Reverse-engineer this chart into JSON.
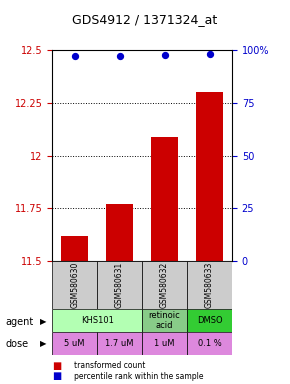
{
  "title": "GDS4912 / 1371324_at",
  "samples": [
    "GSM580630",
    "GSM580631",
    "GSM580632",
    "GSM580633"
  ],
  "bar_values": [
    11.62,
    11.77,
    12.09,
    12.3
  ],
  "percentile_values": [
    97,
    97,
    97.5,
    98
  ],
  "ylim_left": [
    11.5,
    12.5
  ],
  "ylim_right": [
    0,
    100
  ],
  "yticks_left": [
    11.5,
    11.75,
    12.0,
    12.25,
    12.5
  ],
  "ytick_labels_left": [
    "11.5",
    "11.75",
    "12",
    "12.25",
    "12.5"
  ],
  "yticks_right": [
    0,
    25,
    50,
    75,
    100
  ],
  "ytick_labels_right": [
    "0",
    "25",
    "50",
    "75",
    "100%"
  ],
  "bar_color": "#cc0000",
  "dot_color": "#0000cc",
  "bar_bottom": 11.5,
  "agent_configs": [
    [
      0,
      2,
      "KHS101",
      "#b3ffb3"
    ],
    [
      2,
      3,
      "retinoic\nacid",
      "#88cc88"
    ],
    [
      3,
      4,
      "DMSO",
      "#33cc33"
    ]
  ],
  "dose_labels": [
    "5 uM",
    "1.7 uM",
    "1 uM",
    "0.1 %"
  ],
  "dose_color": "#dd88dd",
  "sample_bg_color": "#cccccc",
  "legend_bar_color": "#cc0000",
  "legend_dot_color": "#0000cc"
}
